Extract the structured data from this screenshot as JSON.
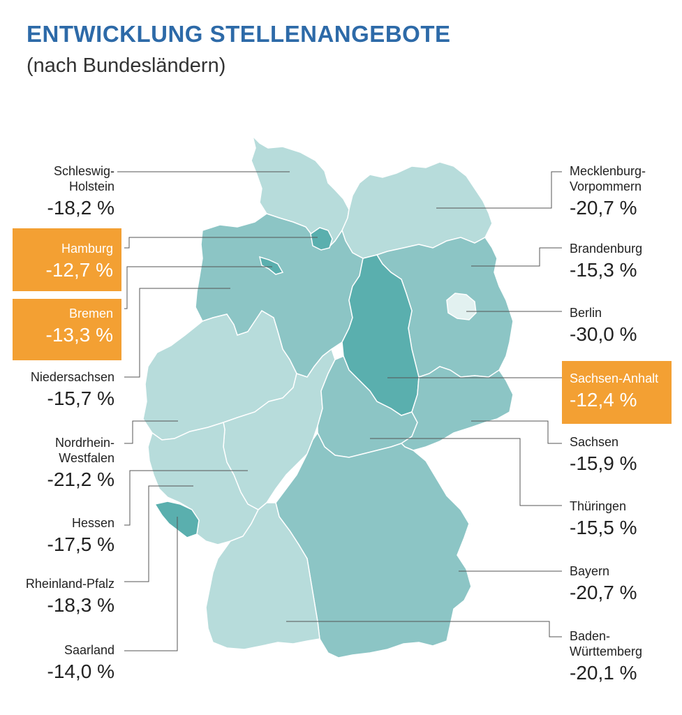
{
  "header": {
    "title": "ENTWICKLUNG STELLENANGEBOTE",
    "subtitle": "(nach Bundesländern)"
  },
  "colors": {
    "light": "#b7dcdb",
    "medium": "#8cc5c5",
    "dark": "#5aafae",
    "highlight": "#f3a033",
    "title": "#2d6aa8",
    "leader": "#555555"
  },
  "states": {
    "sh": {
      "name": "Schleswig-\nHolstein",
      "value": "-18,2 %"
    },
    "hh": {
      "name": "Hamburg",
      "value": "-12,7 %"
    },
    "hb": {
      "name": "Bremen",
      "value": "-13,3 %"
    },
    "ni": {
      "name": "Niedersachsen",
      "value": "-15,7 %"
    },
    "nw": {
      "name": "Nordrhein-\nWestfalen",
      "value": "-21,2 %"
    },
    "he": {
      "name": "Hessen",
      "value": "-17,5 %"
    },
    "rp": {
      "name": "Rheinland-Pfalz",
      "value": "-18,3 %"
    },
    "sl": {
      "name": "Saarland",
      "value": "-14,0 %"
    },
    "mv": {
      "name": "Mecklenburg-\nVorpommern",
      "value": "-20,7 %"
    },
    "bb": {
      "name": "Brandenburg",
      "value": "-15,3 %"
    },
    "be": {
      "name": "Berlin",
      "value": "-30,0 %"
    },
    "st": {
      "name": "Sachsen-Anhalt",
      "value": "-12,4 %"
    },
    "sn": {
      "name": "Sachsen",
      "value": "-15,9 %"
    },
    "th": {
      "name": "Thüringen",
      "value": "-15,5 %"
    },
    "by": {
      "name": "Bayern",
      "value": "-20,7 %"
    },
    "bw": {
      "name": "Baden-\nWürttemberg",
      "value": "-20,1 %"
    }
  }
}
